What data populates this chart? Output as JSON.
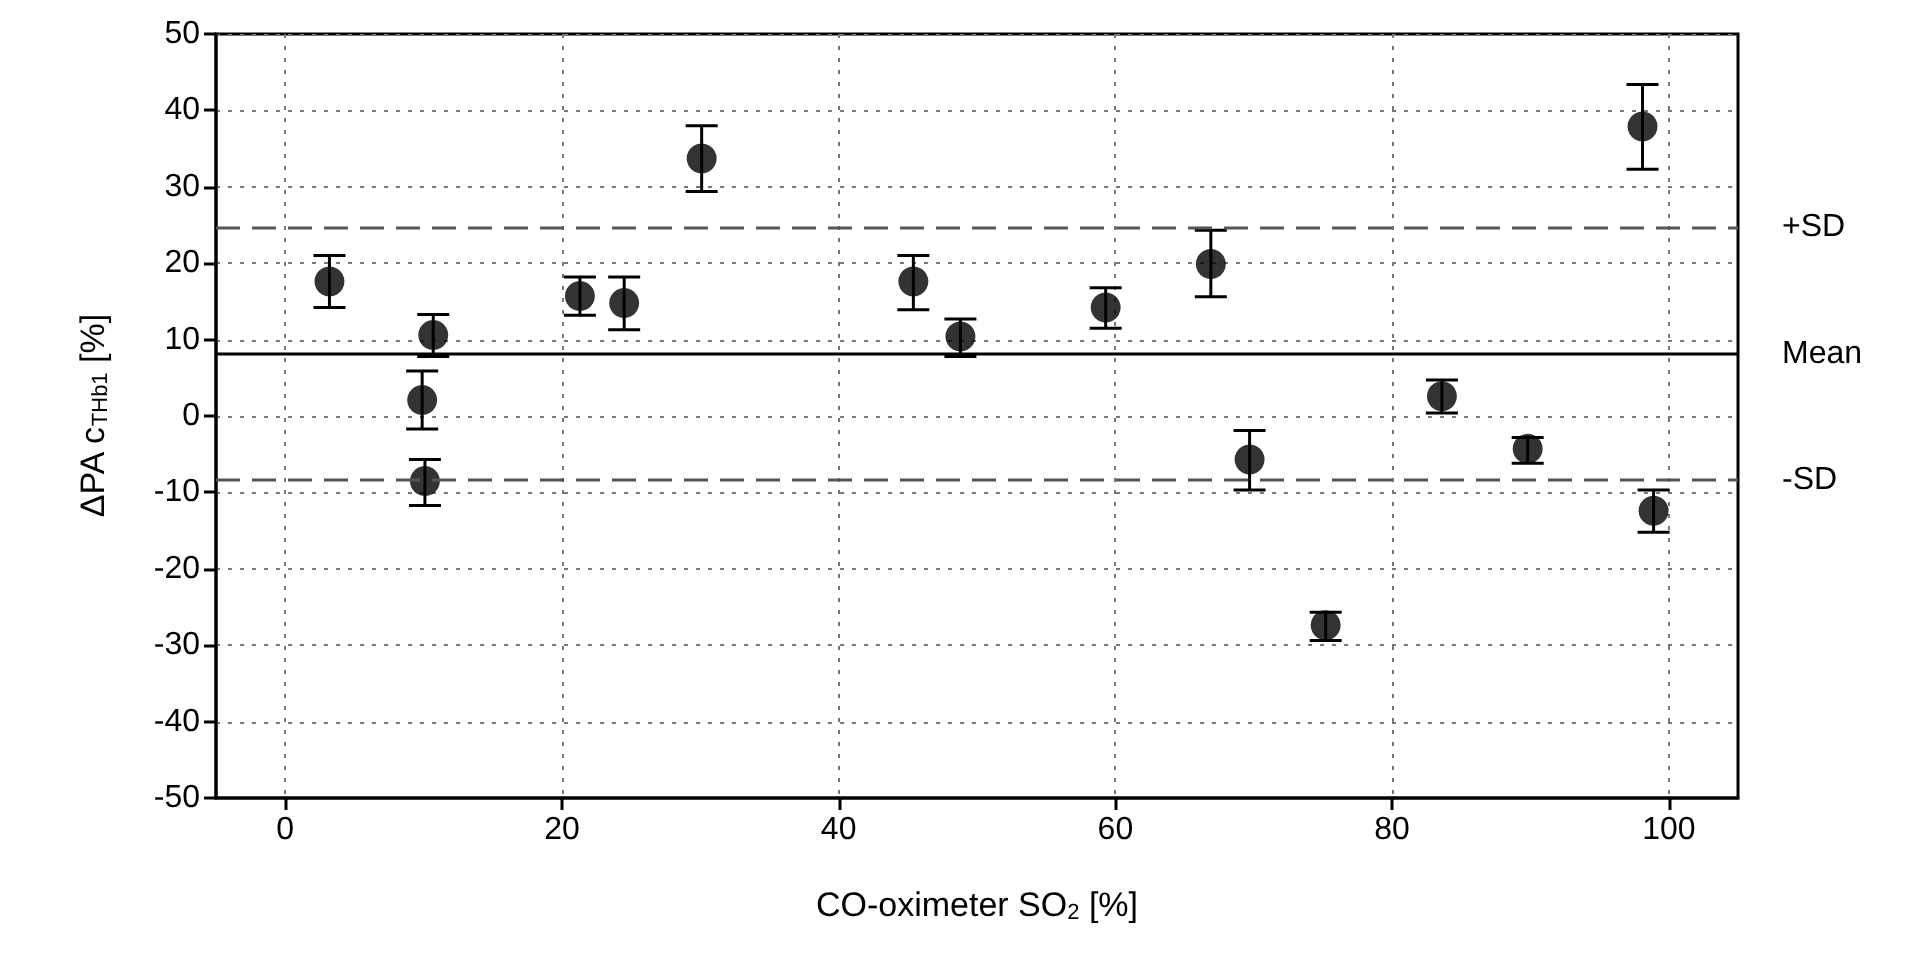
{
  "chart_data": {
    "type": "scatter",
    "xlabel": "CO-oximeter SO$_{2}$ [%]",
    "ylabel": "ΔPA c$_{THb1}$ [%]",
    "x": [
      3.2,
      10.7,
      9.9,
      10.1,
      21.3,
      24.5,
      30.1,
      45.4,
      48.8,
      59.3,
      66.9,
      69.7,
      75.2,
      83.6,
      89.8,
      98.9,
      98.1
    ],
    "series": [
      {
        "color": "#000000",
        "values": [
          17.6,
          10.6,
          2.1,
          -8.5,
          15.7,
          14.8,
          33.7,
          17.6,
          10.4,
          14.2,
          19.9,
          -5.7,
          -27.4,
          2.6,
          -4.3,
          -12.4,
          37.9
        ],
        "errors": [
          [
            14.2,
            21.0
          ],
          [
            7.8,
            13.3
          ],
          [
            -1.7,
            5.9
          ],
          [
            -11.7,
            -5.7
          ],
          [
            13.2,
            18.2
          ],
          [
            11.3,
            18.2
          ],
          [
            29.4,
            38.0
          ],
          [
            13.9,
            21.0
          ],
          [
            7.8,
            12.7
          ],
          [
            11.5,
            16.8
          ],
          [
            15.6,
            24.3
          ],
          [
            -9.7,
            -1.9
          ],
          [
            -29.4,
            -25.7
          ],
          [
            0.4,
            4.7
          ],
          [
            -6.2,
            -2.8
          ],
          [
            -15.2,
            -9.7
          ],
          [
            32.3,
            43.4
          ]
        ]
      }
    ],
    "marker": "circle",
    "xlim": [
      -5,
      105
    ],
    "xticks": [
      0,
      20,
      40,
      60,
      80,
      100
    ],
    "ylim": [
      -50,
      50
    ],
    "yticks": [
      -50,
      -40,
      -30,
      -20,
      -10,
      0,
      10,
      20,
      30,
      40,
      50
    ],
    "grid": true,
    "ref_lines": [
      {
        "axis": "y",
        "value": 24.7,
        "label": "+SD",
        "color": "#555555",
        "line_style": "dashed"
      },
      {
        "axis": "y",
        "value": 8.1,
        "label": "Mean",
        "color": "#000000",
        "line_style": "solid"
      },
      {
        "axis": "y",
        "value": -8.4,
        "label": "-SD",
        "color": "#555555",
        "line_style": "dashed"
      }
    ]
  }
}
